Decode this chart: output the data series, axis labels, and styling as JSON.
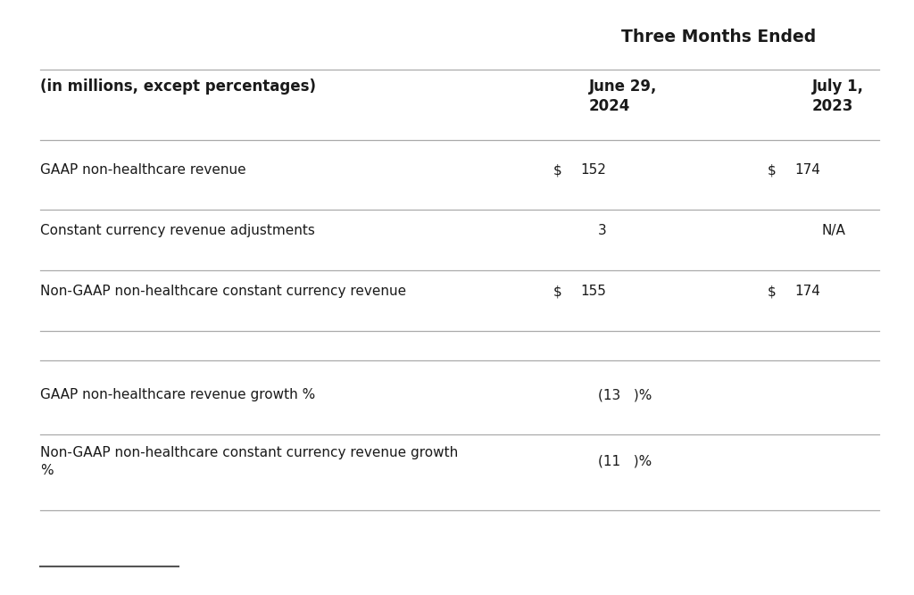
{
  "title": "Three Months Ended",
  "header_col": "(in millions, except percentages)",
  "col1_label": "June 29,\n2024",
  "col2_label": "July 1,\n2023",
  "rows": [
    {
      "label": "GAAP non-healthcare revenue",
      "col1_dollar": "$",
      "col1_val": "152",
      "col2_dollar": "$",
      "col2_val": "174",
      "extra_space_above": false,
      "top_line": true,
      "bottom_line": true,
      "multiline": false
    },
    {
      "label": "Constant currency revenue adjustments",
      "col1_dollar": "",
      "col1_val": "3",
      "col2_dollar": "",
      "col2_val": "N/A",
      "extra_space_above": false,
      "top_line": false,
      "bottom_line": true,
      "multiline": false
    },
    {
      "label": "Non-GAAP non-healthcare constant currency revenue",
      "col1_dollar": "$",
      "col1_val": "155",
      "col2_dollar": "$",
      "col2_val": "174",
      "extra_space_above": false,
      "top_line": false,
      "bottom_line": true,
      "multiline": false
    },
    {
      "label": "GAAP non-healthcare revenue growth %",
      "col1_dollar": "",
      "col1_val": "(13   )%",
      "col2_dollar": "",
      "col2_val": "",
      "extra_space_above": true,
      "top_line": true,
      "bottom_line": true,
      "multiline": false
    },
    {
      "label": "Non-GAAP non-healthcare constant currency revenue growth\n%",
      "col1_dollar": "",
      "col1_val": "(11   )%",
      "col2_dollar": "",
      "col2_val": "",
      "extra_space_above": false,
      "top_line": false,
      "bottom_line": true,
      "multiline": true
    }
  ],
  "bg_color": "#ffffff",
  "text_color": "#1a1a1a",
  "line_color": "#aaaaaa",
  "footer_line_color": "#555555",
  "font_size": 11.0,
  "header_font_size": 12.0,
  "title_font_size": 13.5
}
